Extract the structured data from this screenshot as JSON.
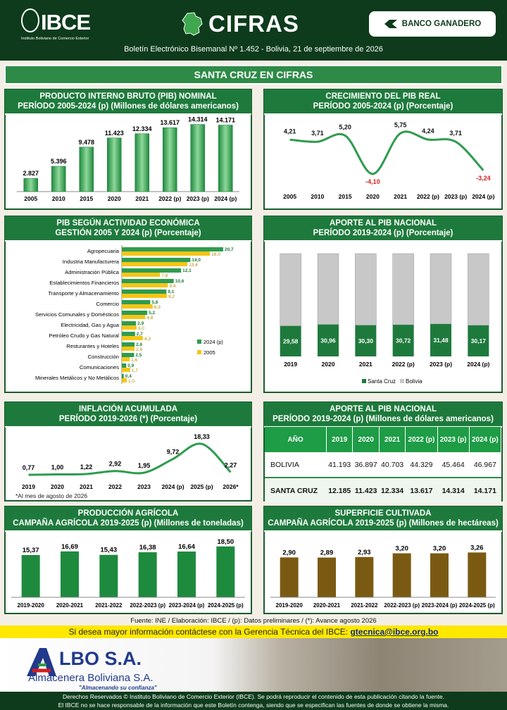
{
  "header": {
    "logo_text": "IBCE",
    "logo_sub": "Instituto Boliviano de Comercio Exterior",
    "title": "CIFRAS",
    "sponsor": "BANCO GANADERO",
    "subtitle": "Boletín Electrónico Bisemanal Nº 1.452 - Bolivia, 21 de septiembre de 2026",
    "banner": "SANTA CRUZ EN CIFRAS"
  },
  "colors": {
    "dark_green": "#0d3b1c",
    "green": "#1e7a3c",
    "bar_green": "#2e9c4e",
    "yellow": "#f5c518",
    "grey_bar": "#c8c8c8",
    "olive": "#7a5a12",
    "red": "#d42020"
  },
  "chart_data": [
    {
      "id": "pib_nominal",
      "type": "bar",
      "title": "PRODUCTO INTERNO BRUTO (PIB) NOMINAL",
      "subtitle": "PERÍODO 2005-2024 (p) (Millones de dólares americanos)",
      "categories": [
        "2005",
        "2010",
        "2015",
        "2020",
        "2021",
        "2022 (p)",
        "2023 (p)",
        "2024 (p)"
      ],
      "values": [
        2827,
        5396,
        9478,
        11423,
        12334,
        13617,
        14314,
        14171
      ],
      "labels": [
        "2.827",
        "5.396",
        "9.478",
        "11.423",
        "12.334",
        "13.617",
        "14.314",
        "14.171"
      ]
    },
    {
      "id": "crecimiento",
      "type": "line",
      "title": "CRECIMIENTO DEL PIB REAL",
      "subtitle": "PERÍODO 2005-2024 (p) (Porcentaje)",
      "categories": [
        "2005",
        "2010",
        "2015",
        "2020",
        "2021",
        "2022 (p)",
        "2023 (p)",
        "2024 (p)"
      ],
      "values": [
        4.21,
        3.71,
        5.2,
        -4.1,
        5.75,
        4.24,
        3.71,
        -3.24
      ],
      "labels": [
        "4,21",
        "3,71",
        "5,20",
        "-4,10",
        "5,75",
        "4,24",
        "3,71",
        "-3,24"
      ]
    },
    {
      "id": "actividad",
      "type": "bar",
      "orientation": "horizontal",
      "title": "PIB SEGÚN ACTIVIDAD ECONÓMICA",
      "subtitle": "GESTIÓN 2005 Y 2024 (p) (Porcentaje)",
      "categories": [
        "Agropecuaria",
        "Industria Manufacturera",
        "Administración Pública",
        "Establecimientos Financieros",
        "Transporte y Almacenamiento",
        "Comercio",
        "Servicios Comunales y Domésticos",
        "Electricidad, Gas y Agua",
        "Petróleo Crudo y Gas Natural",
        "Resturantes y Hoteles",
        "Construcción",
        "Comunicaciones",
        "Minerales Metálicos y No Metálicos"
      ],
      "series": [
        {
          "name": "2024 (p)",
          "values": [
            20.7,
            14.0,
            12.1,
            10.6,
            9.1,
            5.8,
            5.2,
            2.9,
            2.7,
            2.6,
            2.5,
            0.9,
            0.4
          ],
          "labels": [
            "20,7",
            "14,0",
            "12,1",
            "10,6",
            "9,1",
            "5,8",
            "5,2",
            "2,9",
            "2,7",
            "2,6",
            "2,5",
            "0,9",
            "0,4"
          ]
        },
        {
          "name": "2005",
          "values": [
            18.0,
            13.4,
            7.8,
            9.4,
            9.2,
            6.3,
            4.8,
            3.0,
            4.3,
            2.6,
            1.6,
            1.7,
            1.0
          ],
          "labels": [
            "18,0",
            "13,4",
            "7,8",
            "9,4",
            "9,2",
            "6,3",
            "4,8",
            "3,0",
            "4,3",
            "2,6",
            "1,6",
            "1,7",
            "1,0"
          ]
        }
      ],
      "xlim": [
        0,
        22
      ],
      "legend": "right"
    },
    {
      "id": "aporte_pct",
      "type": "bar",
      "stacked": true,
      "title": "APORTE AL PIB NACIONAL",
      "subtitle": "PERÍODO 2019-2024 (p) (Porcentaje)",
      "categories": [
        "2019",
        "2020",
        "2021",
        "2022 (p)",
        "2023 (p)",
        "2024 (p)"
      ],
      "series": [
        {
          "name": "Santa Cruz",
          "values": [
            29.58,
            30.96,
            30.3,
            30.72,
            31.48,
            30.17
          ],
          "labels": [
            "29,58",
            "30,96",
            "30,30",
            "30,72",
            "31,48",
            "30,17"
          ]
        },
        {
          "name": "Bolivia",
          "values": [
            100,
            100,
            100,
            100,
            100,
            100
          ]
        }
      ],
      "legend": "bottom"
    },
    {
      "id": "inflacion",
      "type": "line",
      "title": "INFLACIÓN ACUMULADA",
      "subtitle": "PERÍODO 2019-2026 (*) (Porcentaje)",
      "categories": [
        "2019",
        "2020",
        "2021",
        "2022",
        "2023",
        "2024 (p)",
        "2025 (p)",
        "2026*"
      ],
      "values": [
        0.77,
        1.0,
        1.22,
        2.92,
        1.95,
        9.72,
        18.33,
        2.27
      ],
      "labels": [
        "0,77",
        "1,00",
        "1,22",
        "2,92",
        "1,95",
        "9,72",
        "18,33",
        "2,27"
      ]
    },
    {
      "id": "aporte_usd",
      "type": "table",
      "title": "APORTE AL PIB NACIONAL",
      "subtitle": "PERÍODO 2019-2024 (p) (Millones de dólares americanos)",
      "columns": [
        "AÑO",
        "2019",
        "2020",
        "2021",
        "2022 (p)",
        "2023 (p)",
        "2024 (p)"
      ],
      "rows": [
        [
          "BOLIVIA",
          "41.193",
          "36.897",
          "40.703",
          "44.329",
          "45.464",
          "46.967"
        ],
        [
          "SANTA CRUZ",
          "12.185",
          "11.423",
          "12.334",
          "13.617",
          "14.314",
          "14.171"
        ]
      ]
    },
    {
      "id": "produccion",
      "type": "bar",
      "title": "PRODUCCIÓN AGRÍCOLA",
      "subtitle": "CAMPAÑA AGRÍCOLA 2019-2025 (p) (Millones de toneladas)",
      "categories": [
        "2019-2020",
        "2020-2021",
        "2021-2022",
        "2022-2023 (p)",
        "2023-2024 (p)",
        "2024-2025 (p)"
      ],
      "values": [
        15.37,
        16.69,
        15.43,
        16.38,
        16.64,
        18.5
      ],
      "labels": [
        "15,37",
        "16,69",
        "15,43",
        "16,38",
        "16,64",
        "18,50"
      ]
    },
    {
      "id": "superficie",
      "type": "bar",
      "title": "SUPERFICIE CULTIVADA",
      "subtitle": "CAMPAÑA AGRÍCOLA 2019-2025 (p) (Millones de hectáreas)",
      "categories": [
        "2019-2020",
        "2020-2021",
        "2021-2022",
        "2022-2023 (p)",
        "2023-2024 (p)",
        "2024-2025 (p)"
      ],
      "values": [
        2.9,
        2.89,
        2.93,
        3.2,
        3.2,
        3.26
      ],
      "labels": [
        "2,90",
        "2,89",
        "2,93",
        "3,20",
        "3,20",
        "3,26"
      ]
    }
  ],
  "footnote": "*Al mes de agosto de 2026",
  "fuente": "Fuente: INE / Elaboración: IBCE / (p): Datos preliminares / (*): Avance agosto 2026",
  "contact": {
    "text": "Si desea mayor información contáctese con la Gerencia Técnica del IBCE: ",
    "email": "gtecnica@ibce.org.bo"
  },
  "ad": {
    "name": "LBO S.A.",
    "sub": "Almacenera Boliviana S.A.",
    "slogan": "\"Almacenando su confianza\""
  },
  "bottom": {
    "line1": "Derechos Reservados © Instituto Boliviano de Comercio Exterior (IBCE). Se podrá reproducir el contenido de esta publicación citando la fuente.",
    "line2": "El IBCE no se hace responsable de la información que este Boletín contenga, siendo que se especifican las fuentes de donde se obtiene la misma."
  }
}
